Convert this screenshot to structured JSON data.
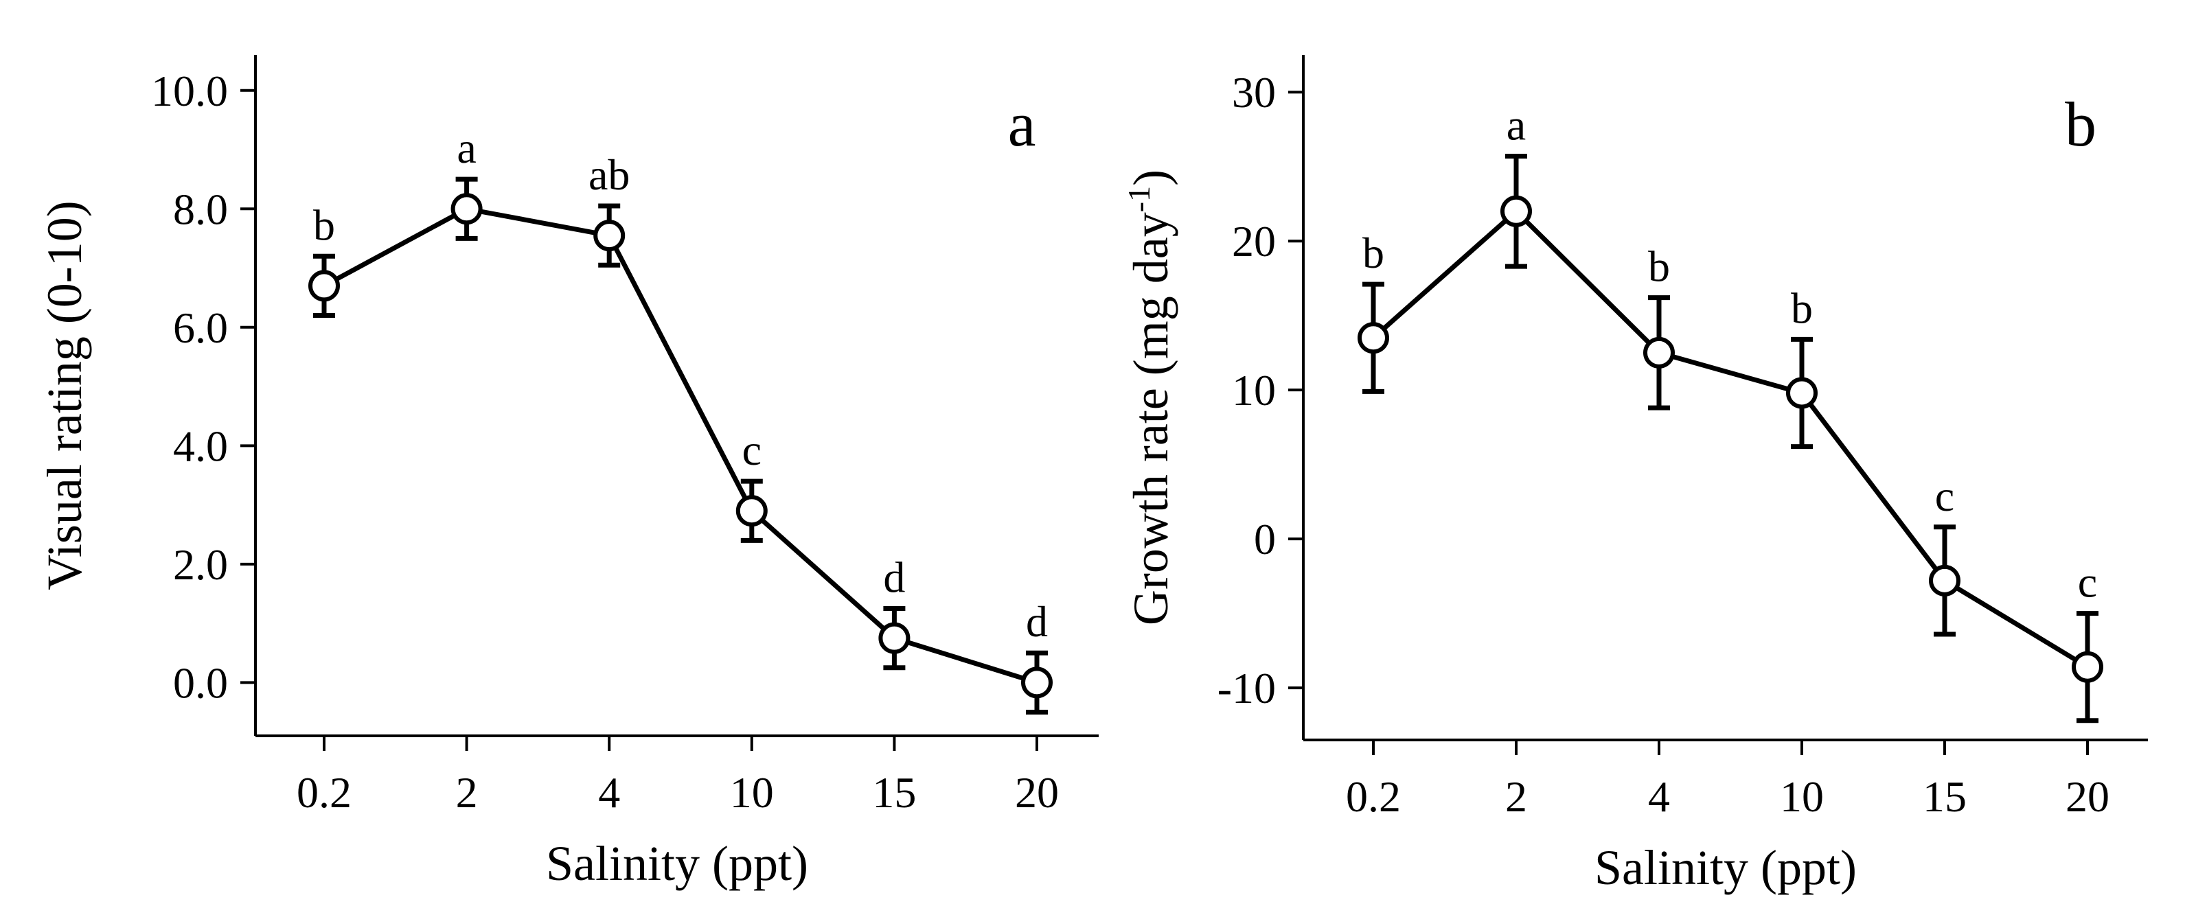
{
  "chart_data": [
    {
      "type": "line",
      "panel_label": "a",
      "xlabel": "Salinity (ppt)",
      "ylabel": "Visual rating (0-10)",
      "categories": [
        "0.2",
        "2",
        "4",
        "10",
        "15",
        "20"
      ],
      "values": [
        6.7,
        8.0,
        7.55,
        2.9,
        0.75,
        0.0
      ],
      "errors": [
        0.5,
        0.5,
        0.5,
        0.5,
        0.5,
        0.5
      ],
      "letters": [
        "b",
        "a",
        "ab",
        "c",
        "d",
        "d"
      ],
      "yticks": [
        0.0,
        2.0,
        4.0,
        6.0,
        8.0,
        10.0
      ],
      "ytick_labels": [
        "0.0",
        "2.0",
        "4.0",
        "6.0",
        "8.0",
        "10.0"
      ],
      "ylim": [
        -0.9,
        10.6
      ],
      "grid": false,
      "marker": "open-circle",
      "error_bars": true
    },
    {
      "type": "line",
      "panel_label": "b",
      "xlabel": "Salinity (ppt)",
      "ylabel": "Growth rate (mg day-1)",
      "ylabel_main": "Growth rate (mg day",
      "ylabel_sup": "-1",
      "ylabel_close": ")",
      "categories": [
        "0.2",
        "2",
        "4",
        "10",
        "15",
        "20"
      ],
      "values": [
        13.5,
        22.0,
        12.5,
        9.8,
        -2.8,
        -8.6
      ],
      "errors": [
        3.6,
        3.7,
        3.7,
        3.6,
        3.6,
        3.6
      ],
      "letters": [
        "b",
        "a",
        "b",
        "b",
        "c",
        "c"
      ],
      "yticks": [
        -10,
        0,
        10,
        20,
        30
      ],
      "ytick_labels": [
        "-10",
        "0",
        "10",
        "20",
        "30"
      ],
      "ylim": [
        -13.5,
        32.5
      ],
      "grid": false,
      "marker": "open-circle",
      "error_bars": true
    }
  ]
}
